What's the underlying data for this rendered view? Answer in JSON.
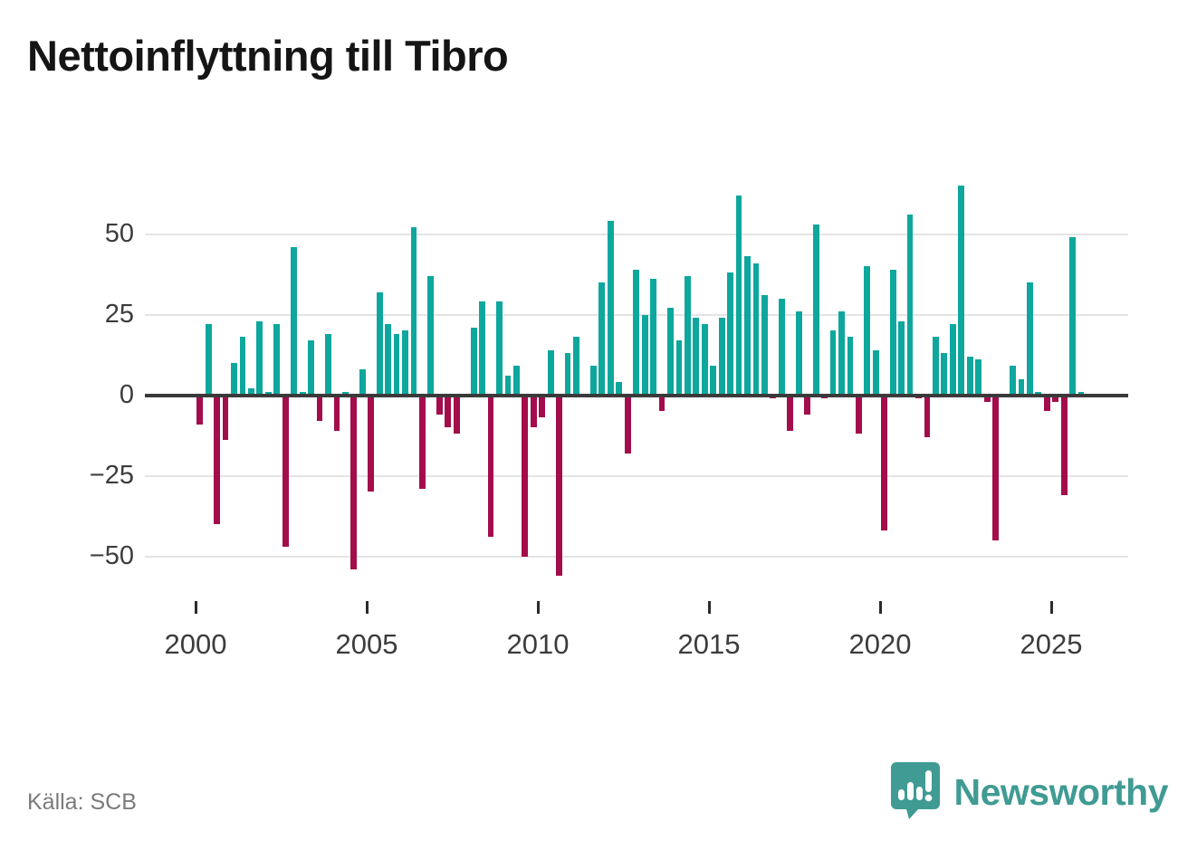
{
  "header": {
    "title": "Nettoinflyttning till Tibro"
  },
  "footer": {
    "source_label": "Källa: SCB",
    "brand_name": "Newsworthy",
    "brand_icon": "speech-bubble-bar-chart-icon"
  },
  "colors": {
    "positive_bar": "#0da79d",
    "negative_bar": "#a30d4b",
    "zero_axis": "#3a3a3a",
    "gridline": "#e4e4e4",
    "brand_teal": "#3f9b93"
  },
  "chart_data": {
    "type": "bar",
    "title": "Nettoinflyttning till Tibro",
    "xlabel": "",
    "ylabel": "",
    "ylim": [
      -60,
      70
    ],
    "grid": "horizontal",
    "y_ticks": [
      50,
      25,
      0,
      -25,
      -50
    ],
    "x_tick_years": [
      2000,
      2005,
      2010,
      2015,
      2020,
      2025
    ],
    "frequency": "quarterly",
    "series_by_year": [
      {
        "year": 2000,
        "values": [
          -9,
          22,
          -40,
          -14
        ]
      },
      {
        "year": 2001,
        "values": [
          10,
          18,
          2,
          23
        ]
      },
      {
        "year": 2002,
        "values": [
          1,
          22,
          -47,
          46
        ]
      },
      {
        "year": 2003,
        "values": [
          1,
          17,
          -8,
          19
        ]
      },
      {
        "year": 2004,
        "values": [
          -11,
          1,
          -54,
          8
        ]
      },
      {
        "year": 2005,
        "values": [
          -30,
          32,
          22,
          19
        ]
      },
      {
        "year": 2006,
        "values": [
          20,
          52,
          -29,
          37
        ]
      },
      {
        "year": 2007,
        "values": [
          -6,
          -10,
          -12,
          0
        ]
      },
      {
        "year": 2008,
        "values": [
          21,
          29,
          -44,
          29
        ]
      },
      {
        "year": 2009,
        "values": [
          6,
          9,
          -50,
          -10
        ]
      },
      {
        "year": 2010,
        "values": [
          -7,
          14,
          -56,
          13
        ]
      },
      {
        "year": 2011,
        "values": [
          18,
          0,
          9,
          35
        ]
      },
      {
        "year": 2012,
        "values": [
          54,
          4,
          -18,
          39
        ]
      },
      {
        "year": 2013,
        "values": [
          25,
          36,
          -5,
          27
        ]
      },
      {
        "year": 2014,
        "values": [
          17,
          37,
          24,
          22
        ]
      },
      {
        "year": 2015,
        "values": [
          9,
          24,
          38,
          62
        ]
      },
      {
        "year": 2016,
        "values": [
          43,
          41,
          31,
          -1
        ]
      },
      {
        "year": 2017,
        "values": [
          30,
          -11,
          26,
          -6
        ]
      },
      {
        "year": 2018,
        "values": [
          53,
          -1,
          20,
          26
        ]
      },
      {
        "year": 2019,
        "values": [
          18,
          -12,
          40,
          14
        ]
      },
      {
        "year": 2020,
        "values": [
          -42,
          39,
          23,
          56
        ]
      },
      {
        "year": 2021,
        "values": [
          -1,
          -13,
          18,
          13
        ]
      },
      {
        "year": 2022,
        "values": [
          22,
          65,
          12,
          11
        ]
      },
      {
        "year": 2023,
        "values": [
          -2,
          -45,
          0,
          9
        ]
      },
      {
        "year": 2024,
        "values": [
          5,
          35,
          1,
          -5
        ]
      },
      {
        "year": 2025,
        "values": [
          -2,
          -31,
          49,
          1
        ]
      }
    ]
  }
}
